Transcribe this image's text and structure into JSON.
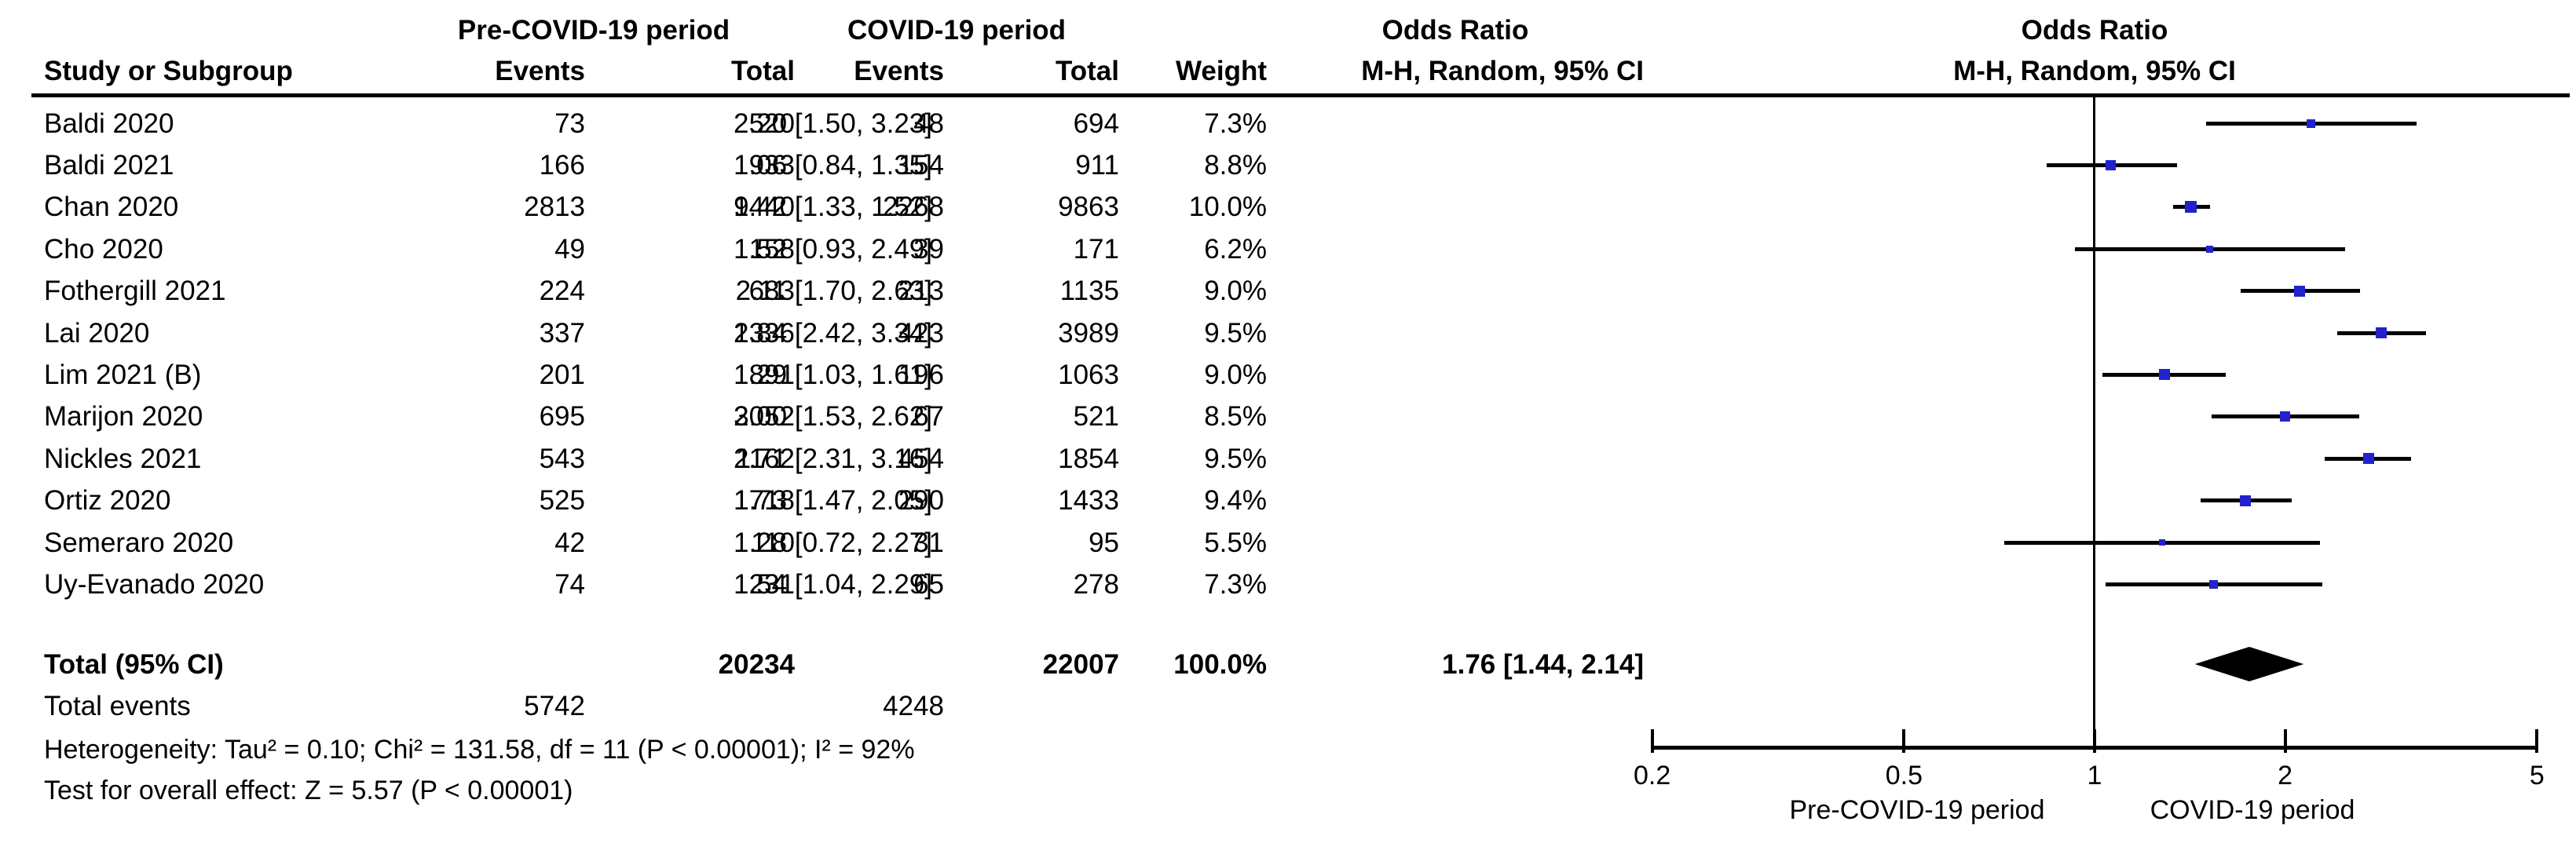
{
  "table": {
    "group_headers": {
      "pre": "Pre-COVID-19 period",
      "covid": "COVID-19 period",
      "odds_ratio": "Odds Ratio"
    },
    "columns": {
      "study": "Study or Subgroup",
      "events": "Events",
      "total": "Total",
      "events2": "Events",
      "total2": "Total",
      "weight": "Weight",
      "mh": "M-H, Random, 95% CI"
    }
  },
  "plot": {
    "header_line1": "Odds Ratio",
    "header_line2": "M-H, Random, 95% CI",
    "axis_labels": {
      "left": "Pre-COVID-19 period",
      "right": "COVID-19 period"
    }
  },
  "footers": {
    "heterogeneity": "Heterogeneity: Tau² = 0.10; Chi² = 131.58, df = 11 (P < 0.00001); I² = 92%",
    "overall_effect": "Test for overall effect: Z = 5.57 (P < 0.00001)"
  },
  "chart_data": {
    "type": "forest",
    "effect_measure": "Odds Ratio",
    "method": "M-H, Random, 95% CI",
    "x_scale": "log",
    "x_range": [
      0.2,
      5
    ],
    "axis_ticks": [
      {
        "value": 0.2,
        "label": "0.2"
      },
      {
        "value": 0.5,
        "label": "0.5"
      },
      {
        "value": 1,
        "label": "1"
      },
      {
        "value": 2,
        "label": "2"
      },
      {
        "value": 5,
        "label": "5"
      }
    ],
    "colors": {
      "marker": "#2222CC",
      "line": "#000000",
      "diamond": "#000000"
    },
    "studies": [
      {
        "name": "Baldi 2020",
        "pre_events": 73,
        "pre_total": 520,
        "covid_events": 48,
        "covid_total": 694,
        "weight": "7.3%",
        "or": 2.2,
        "ci_low": 1.5,
        "ci_high": 3.23,
        "ci_text": "2.20 [1.50, 3.23]"
      },
      {
        "name": "Baldi 2021",
        "pre_events": 166,
        "pre_total": 933,
        "covid_events": 154,
        "covid_total": 911,
        "weight": "8.8%",
        "or": 1.06,
        "ci_low": 0.84,
        "ci_high": 1.35,
        "ci_text": "1.06 [0.84, 1.35]"
      },
      {
        "name": "Chan 2020",
        "pre_events": 2813,
        "pre_total": 9440,
        "covid_events": 2268,
        "covid_total": 9863,
        "weight": "10.0%",
        "or": 1.42,
        "ci_low": 1.33,
        "ci_high": 1.52,
        "ci_text": "1.42 [1.33, 1.52]"
      },
      {
        "name": "Cho 2020",
        "pre_events": 49,
        "pre_total": 158,
        "covid_events": 39,
        "covid_total": 171,
        "weight": "6.2%",
        "or": 1.52,
        "ci_low": 0.93,
        "ci_high": 2.49,
        "ci_text": "1.52 [0.93, 2.49]"
      },
      {
        "name": "Fothergill 2021",
        "pre_events": 224,
        "pre_total": 683,
        "covid_events": 213,
        "covid_total": 1135,
        "weight": "9.0%",
        "or": 2.11,
        "ci_low": 1.7,
        "ci_high": 2.63,
        "ci_text": "2.11 [1.70, 2.63]"
      },
      {
        "name": "Lai 2020",
        "pre_events": 337,
        "pre_total": 1336,
        "covid_events": 423,
        "covid_total": 3989,
        "weight": "9.5%",
        "or": 2.84,
        "ci_low": 2.42,
        "ci_high": 3.34,
        "ci_text": "2.84 [2.42, 3.34]"
      },
      {
        "name": "Lim 2021 (B)",
        "pre_events": 201,
        "pre_total": 891,
        "covid_events": 196,
        "covid_total": 1063,
        "weight": "9.0%",
        "or": 1.29,
        "ci_low": 1.03,
        "ci_high": 1.61,
        "ci_text": "1.29 [1.03, 1.61]"
      },
      {
        "name": "Marijon 2020",
        "pre_events": 695,
        "pre_total": 3052,
        "covid_events": 67,
        "covid_total": 521,
        "weight": "8.5%",
        "or": 2.0,
        "ci_low": 1.53,
        "ci_high": 2.62,
        "ci_text": "2.00 [1.53, 2.62]"
      },
      {
        "name": "Nickles 2021",
        "pre_events": 543,
        "pre_total": 1162,
        "covid_events": 454,
        "covid_total": 1854,
        "weight": "9.5%",
        "or": 2.71,
        "ci_low": 2.31,
        "ci_high": 3.16,
        "ci_text": "2.71 [2.31, 3.16]"
      },
      {
        "name": "Ortiz 2020",
        "pre_events": 525,
        "pre_total": 1718,
        "covid_events": 290,
        "covid_total": 1433,
        "weight": "9.4%",
        "or": 1.73,
        "ci_low": 1.47,
        "ci_high": 2.05,
        "ci_text": "1.73 [1.47, 2.05]"
      },
      {
        "name": "Semeraro 2020",
        "pre_events": 42,
        "pre_total": 110,
        "covid_events": 31,
        "covid_total": 95,
        "weight": "5.5%",
        "or": 1.28,
        "ci_low": 0.72,
        "ci_high": 2.27,
        "ci_text": "1.28 [0.72, 2.27]"
      },
      {
        "name": "Uy-Evanado 2020",
        "pre_events": 74,
        "pre_total": 231,
        "covid_events": 65,
        "covid_total": 278,
        "weight": "7.3%",
        "or": 1.54,
        "ci_low": 1.04,
        "ci_high": 2.29,
        "ci_text": "1.54 [1.04, 2.29]"
      }
    ],
    "total": {
      "label": "Total (95% CI)",
      "pre_total": 20234,
      "covid_total": 22007,
      "weight": "100.0%",
      "or": 1.76,
      "ci_low": 1.44,
      "ci_high": 2.14,
      "ci_text": "1.76 [1.44, 2.14]"
    },
    "total_events": {
      "label": "Total events",
      "pre": 5742,
      "covid": 4248
    }
  }
}
